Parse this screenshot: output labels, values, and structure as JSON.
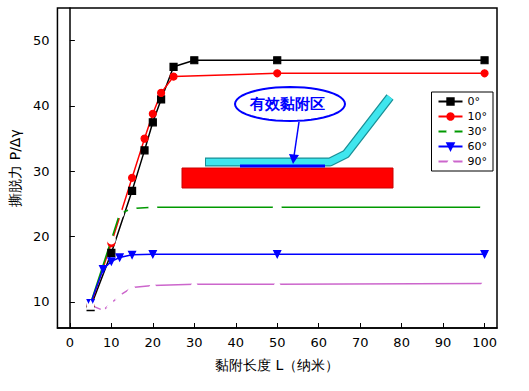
{
  "chart_data": {
    "type": "line",
    "xlabel": "黏附长度 L（纳米）",
    "ylabel": "撕脱力 P/Δγ",
    "xlim": [
      -3,
      103
    ],
    "xticks": [
      0,
      10,
      20,
      30,
      40,
      50,
      60,
      70,
      80,
      90,
      100
    ],
    "ylim": [
      6,
      55
    ],
    "yticks": [
      10,
      20,
      30,
      40,
      50
    ],
    "grid": false,
    "legend": "upper right",
    "annotations": [
      "有效黏附区"
    ],
    "series": [
      {
        "name": "0°",
        "color": "#000000",
        "marker": "square",
        "x": [
          5,
          10,
          15,
          18,
          20,
          22,
          25,
          30,
          50,
          100
        ],
        "values": [
          9.2,
          17.5,
          27,
          33.2,
          37.5,
          41,
          46,
          47,
          47,
          47
        ]
      },
      {
        "name": "10°",
        "color": "#ff0000",
        "marker": "circle",
        "x": [
          5,
          10,
          15,
          18,
          20,
          22,
          25,
          50,
          100
        ],
        "values": [
          9.5,
          19,
          29,
          35,
          38.8,
          42,
          44.5,
          45,
          45
        ]
      },
      {
        "name": "30°",
        "color": "#009900",
        "marker": "circle-open",
        "x": [
          5,
          10,
          12,
          15,
          20,
          50,
          100
        ],
        "values": [
          9.8,
          19.5,
          23.5,
          24.3,
          24.5,
          24.5,
          24.5
        ]
      },
      {
        "name": "60°",
        "color": "#0000ff",
        "marker": "triangle-down",
        "x": [
          5,
          8,
          10,
          12,
          15,
          20,
          50,
          100
        ],
        "values": [
          9.8,
          15,
          16.2,
          16.8,
          17.2,
          17.3,
          17.3,
          17.3
        ]
      },
      {
        "name": "90°",
        "color": "#cc66cc",
        "marker": "triangle-open",
        "x": [
          5,
          8,
          10,
          12,
          15,
          20,
          30,
          50,
          100
        ],
        "values": [
          9.5,
          8.7,
          9.8,
          11,
          12.2,
          12.5,
          12.7,
          12.7,
          12.8
        ]
      }
    ]
  }
}
